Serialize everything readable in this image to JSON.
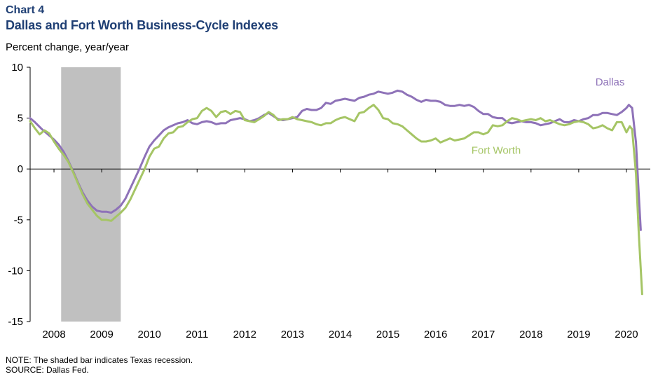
{
  "header": {
    "chart_number": "Chart 4",
    "title": "Dallas and Fort Worth Business-Cycle Indexes",
    "y_unit": "Percent change, year/year"
  },
  "notes": {
    "note": "NOTE: The shaded bar indicates Texas recession.",
    "source": "SOURCE: Dallas Fed."
  },
  "chart_data": {
    "type": "line",
    "title": "Dallas and Fort Worth Business-Cycle Indexes",
    "ylabel": "Percent change, year/year",
    "xlabel": "",
    "x_start": 2007.5,
    "x_end": 2020.5,
    "ylim": [
      -15,
      10
    ],
    "y_ticks": [
      10,
      5,
      0,
      -5,
      -10,
      -15
    ],
    "x_tick_labels": [
      "2008",
      "2009",
      "2010",
      "2011",
      "2012",
      "2013",
      "2014",
      "2015",
      "2016",
      "2017",
      "2018",
      "2019",
      "2020"
    ],
    "grid": false,
    "recession": {
      "start": 2008.15,
      "end": 2009.4
    },
    "series": [
      {
        "name": "Dallas",
        "color": "#8e72b8",
        "points": [
          [
            2007.5,
            5.0
          ],
          [
            2007.6,
            4.6
          ],
          [
            2007.75,
            3.9
          ],
          [
            2007.9,
            3.3
          ],
          [
            2008.0,
            2.9
          ],
          [
            2008.1,
            2.4
          ],
          [
            2008.2,
            1.7
          ],
          [
            2008.3,
            0.8
          ],
          [
            2008.4,
            -0.2
          ],
          [
            2008.5,
            -1.3
          ],
          [
            2008.6,
            -2.3
          ],
          [
            2008.7,
            -3.1
          ],
          [
            2008.8,
            -3.7
          ],
          [
            2008.9,
            -4.1
          ],
          [
            2009.0,
            -4.2
          ],
          [
            2009.1,
            -4.2
          ],
          [
            2009.2,
            -4.3
          ],
          [
            2009.3,
            -4.0
          ],
          [
            2009.4,
            -3.6
          ],
          [
            2009.5,
            -2.9
          ],
          [
            2009.6,
            -1.9
          ],
          [
            2009.7,
            -0.9
          ],
          [
            2009.8,
            0.1
          ],
          [
            2009.9,
            1.2
          ],
          [
            2010.0,
            2.2
          ],
          [
            2010.1,
            2.8
          ],
          [
            2010.2,
            3.3
          ],
          [
            2010.3,
            3.8
          ],
          [
            2010.4,
            4.1
          ],
          [
            2010.5,
            4.3
          ],
          [
            2010.6,
            4.5
          ],
          [
            2010.7,
            4.6
          ],
          [
            2010.8,
            4.8
          ],
          [
            2010.9,
            4.5
          ],
          [
            2011.0,
            4.4
          ],
          [
            2011.1,
            4.6
          ],
          [
            2011.2,
            4.7
          ],
          [
            2011.3,
            4.6
          ],
          [
            2011.4,
            4.4
          ],
          [
            2011.5,
            4.5
          ],
          [
            2011.6,
            4.5
          ],
          [
            2011.7,
            4.8
          ],
          [
            2011.8,
            4.9
          ],
          [
            2011.9,
            5.0
          ],
          [
            2012.0,
            4.9
          ],
          [
            2012.1,
            4.7
          ],
          [
            2012.2,
            4.8
          ],
          [
            2012.3,
            5.0
          ],
          [
            2012.4,
            5.3
          ],
          [
            2012.5,
            5.5
          ],
          [
            2012.6,
            5.2
          ],
          [
            2012.7,
            4.9
          ],
          [
            2012.8,
            4.8
          ],
          [
            2012.9,
            4.9
          ],
          [
            2013.0,
            5.0
          ],
          [
            2013.1,
            5.1
          ],
          [
            2013.2,
            5.7
          ],
          [
            2013.3,
            5.9
          ],
          [
            2013.4,
            5.8
          ],
          [
            2013.5,
            5.8
          ],
          [
            2013.6,
            6.0
          ],
          [
            2013.7,
            6.5
          ],
          [
            2013.8,
            6.4
          ],
          [
            2013.9,
            6.7
          ],
          [
            2014.0,
            6.8
          ],
          [
            2014.1,
            6.9
          ],
          [
            2014.2,
            6.8
          ],
          [
            2014.3,
            6.7
          ],
          [
            2014.4,
            7.0
          ],
          [
            2014.5,
            7.1
          ],
          [
            2014.6,
            7.3
          ],
          [
            2014.7,
            7.4
          ],
          [
            2014.8,
            7.6
          ],
          [
            2014.9,
            7.5
          ],
          [
            2015.0,
            7.4
          ],
          [
            2015.1,
            7.5
          ],
          [
            2015.2,
            7.7
          ],
          [
            2015.3,
            7.6
          ],
          [
            2015.4,
            7.3
          ],
          [
            2015.5,
            7.1
          ],
          [
            2015.6,
            6.8
          ],
          [
            2015.7,
            6.6
          ],
          [
            2015.8,
            6.8
          ],
          [
            2015.9,
            6.7
          ],
          [
            2016.0,
            6.7
          ],
          [
            2016.1,
            6.6
          ],
          [
            2016.2,
            6.3
          ],
          [
            2016.3,
            6.2
          ],
          [
            2016.4,
            6.2
          ],
          [
            2016.5,
            6.3
          ],
          [
            2016.6,
            6.2
          ],
          [
            2016.7,
            6.3
          ],
          [
            2016.8,
            6.1
          ],
          [
            2016.9,
            5.7
          ],
          [
            2017.0,
            5.4
          ],
          [
            2017.1,
            5.4
          ],
          [
            2017.2,
            5.1
          ],
          [
            2017.3,
            5.0
          ],
          [
            2017.4,
            5.0
          ],
          [
            2017.5,
            4.6
          ],
          [
            2017.6,
            4.5
          ],
          [
            2017.7,
            4.6
          ],
          [
            2017.8,
            4.7
          ],
          [
            2017.9,
            4.6
          ],
          [
            2018.0,
            4.6
          ],
          [
            2018.1,
            4.5
          ],
          [
            2018.2,
            4.3
          ],
          [
            2018.3,
            4.4
          ],
          [
            2018.4,
            4.5
          ],
          [
            2018.5,
            4.7
          ],
          [
            2018.6,
            4.9
          ],
          [
            2018.7,
            4.6
          ],
          [
            2018.8,
            4.6
          ],
          [
            2018.9,
            4.8
          ],
          [
            2019.0,
            4.7
          ],
          [
            2019.1,
            4.9
          ],
          [
            2019.2,
            5.0
          ],
          [
            2019.3,
            5.3
          ],
          [
            2019.4,
            5.3
          ],
          [
            2019.5,
            5.5
          ],
          [
            2019.6,
            5.5
          ],
          [
            2019.7,
            5.4
          ],
          [
            2019.8,
            5.3
          ],
          [
            2019.9,
            5.6
          ],
          [
            2020.0,
            6.0
          ],
          [
            2020.05,
            6.3
          ],
          [
            2020.12,
            6.0
          ],
          [
            2020.2,
            2.6
          ],
          [
            2020.25,
            -1.8
          ],
          [
            2020.3,
            -6.0
          ]
        ]
      },
      {
        "name": "Fort Worth",
        "color": "#a5c565",
        "points": [
          [
            2007.5,
            4.7
          ],
          [
            2007.6,
            4.0
          ],
          [
            2007.7,
            3.4
          ],
          [
            2007.8,
            3.8
          ],
          [
            2007.9,
            3.5
          ],
          [
            2008.0,
            2.7
          ],
          [
            2008.1,
            2.0
          ],
          [
            2008.2,
            1.4
          ],
          [
            2008.3,
            0.7
          ],
          [
            2008.4,
            -0.3
          ],
          [
            2008.5,
            -1.4
          ],
          [
            2008.6,
            -2.5
          ],
          [
            2008.7,
            -3.4
          ],
          [
            2008.8,
            -4.0
          ],
          [
            2008.9,
            -4.6
          ],
          [
            2009.0,
            -5.0
          ],
          [
            2009.1,
            -5.0
          ],
          [
            2009.2,
            -5.1
          ],
          [
            2009.3,
            -4.7
          ],
          [
            2009.4,
            -4.3
          ],
          [
            2009.5,
            -3.8
          ],
          [
            2009.6,
            -3.0
          ],
          [
            2009.7,
            -2.0
          ],
          [
            2009.8,
            -1.0
          ],
          [
            2009.9,
            0.0
          ],
          [
            2010.0,
            1.2
          ],
          [
            2010.1,
            2.0
          ],
          [
            2010.2,
            2.2
          ],
          [
            2010.3,
            3.0
          ],
          [
            2010.4,
            3.5
          ],
          [
            2010.5,
            3.6
          ],
          [
            2010.6,
            4.1
          ],
          [
            2010.7,
            4.2
          ],
          [
            2010.8,
            4.6
          ],
          [
            2010.9,
            4.9
          ],
          [
            2011.0,
            5.0
          ],
          [
            2011.1,
            5.7
          ],
          [
            2011.2,
            6.0
          ],
          [
            2011.3,
            5.7
          ],
          [
            2011.4,
            5.1
          ],
          [
            2011.5,
            5.6
          ],
          [
            2011.6,
            5.7
          ],
          [
            2011.7,
            5.4
          ],
          [
            2011.8,
            5.7
          ],
          [
            2011.9,
            5.6
          ],
          [
            2012.0,
            4.8
          ],
          [
            2012.1,
            4.7
          ],
          [
            2012.2,
            4.6
          ],
          [
            2012.3,
            4.9
          ],
          [
            2012.4,
            5.2
          ],
          [
            2012.5,
            5.6
          ],
          [
            2012.6,
            5.3
          ],
          [
            2012.7,
            4.8
          ],
          [
            2012.8,
            4.9
          ],
          [
            2012.9,
            4.9
          ],
          [
            2013.0,
            5.1
          ],
          [
            2013.1,
            4.9
          ],
          [
            2013.2,
            4.8
          ],
          [
            2013.3,
            4.7
          ],
          [
            2013.4,
            4.6
          ],
          [
            2013.5,
            4.4
          ],
          [
            2013.6,
            4.3
          ],
          [
            2013.7,
            4.5
          ],
          [
            2013.8,
            4.5
          ],
          [
            2013.9,
            4.8
          ],
          [
            2014.0,
            5.0
          ],
          [
            2014.1,
            5.1
          ],
          [
            2014.2,
            4.9
          ],
          [
            2014.3,
            4.7
          ],
          [
            2014.4,
            5.5
          ],
          [
            2014.5,
            5.6
          ],
          [
            2014.6,
            6.0
          ],
          [
            2014.7,
            6.3
          ],
          [
            2014.8,
            5.8
          ],
          [
            2014.9,
            5.0
          ],
          [
            2015.0,
            4.9
          ],
          [
            2015.1,
            4.5
          ],
          [
            2015.2,
            4.4
          ],
          [
            2015.3,
            4.2
          ],
          [
            2015.4,
            3.8
          ],
          [
            2015.5,
            3.4
          ],
          [
            2015.6,
            3.0
          ],
          [
            2015.7,
            2.7
          ],
          [
            2015.8,
            2.7
          ],
          [
            2015.9,
            2.8
          ],
          [
            2016.0,
            3.0
          ],
          [
            2016.1,
            2.6
          ],
          [
            2016.2,
            2.8
          ],
          [
            2016.3,
            3.0
          ],
          [
            2016.4,
            2.8
          ],
          [
            2016.5,
            2.9
          ],
          [
            2016.6,
            3.0
          ],
          [
            2016.7,
            3.3
          ],
          [
            2016.8,
            3.6
          ],
          [
            2016.9,
            3.6
          ],
          [
            2017.0,
            3.4
          ],
          [
            2017.1,
            3.6
          ],
          [
            2017.2,
            4.3
          ],
          [
            2017.3,
            4.2
          ],
          [
            2017.4,
            4.3
          ],
          [
            2017.5,
            4.7
          ],
          [
            2017.6,
            5.0
          ],
          [
            2017.7,
            4.9
          ],
          [
            2017.8,
            4.7
          ],
          [
            2017.9,
            4.8
          ],
          [
            2018.0,
            4.9
          ],
          [
            2018.1,
            4.8
          ],
          [
            2018.2,
            5.0
          ],
          [
            2018.3,
            4.7
          ],
          [
            2018.4,
            4.8
          ],
          [
            2018.5,
            4.6
          ],
          [
            2018.6,
            4.4
          ],
          [
            2018.7,
            4.3
          ],
          [
            2018.8,
            4.4
          ],
          [
            2018.9,
            4.6
          ],
          [
            2019.0,
            4.7
          ],
          [
            2019.1,
            4.6
          ],
          [
            2019.2,
            4.4
          ],
          [
            2019.3,
            4.0
          ],
          [
            2019.4,
            4.1
          ],
          [
            2019.5,
            4.3
          ],
          [
            2019.6,
            4.0
          ],
          [
            2019.7,
            3.8
          ],
          [
            2019.8,
            4.6
          ],
          [
            2019.9,
            4.6
          ],
          [
            2020.0,
            3.6
          ],
          [
            2020.07,
            4.2
          ],
          [
            2020.12,
            3.9
          ],
          [
            2020.2,
            -0.5
          ],
          [
            2020.26,
            -6.5
          ],
          [
            2020.33,
            -12.3
          ]
        ]
      }
    ],
    "series_labels": [
      {
        "name": "Dallas",
        "x": 2019.35,
        "y": 8.2
      },
      {
        "name": "Fort Worth",
        "x": 2016.75,
        "y": 1.5
      }
    ]
  }
}
